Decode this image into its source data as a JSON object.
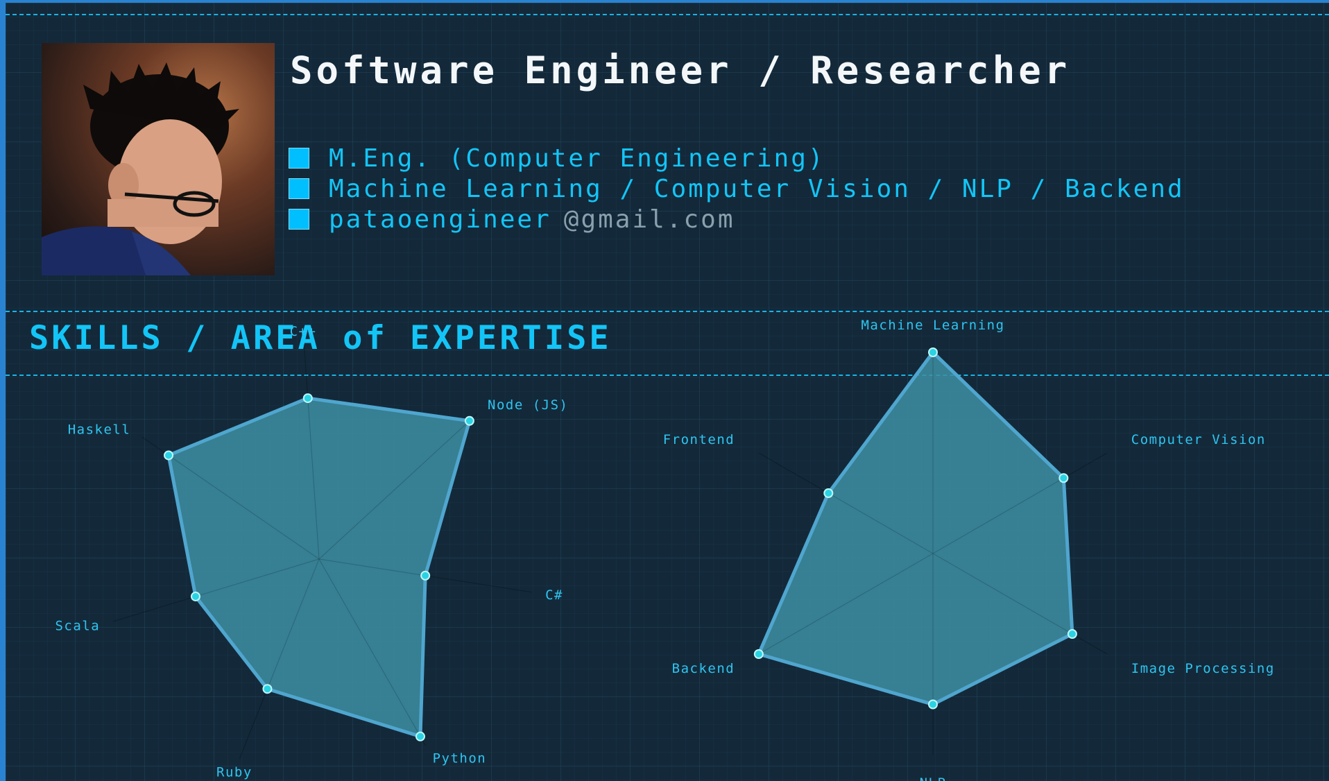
{
  "profile": {
    "title": "Software Engineer / Researcher",
    "items": [
      {
        "text": "M.Eng. (Computer Engineering)"
      },
      {
        "text": "Machine Learning / Computer Vision / NLP / Backend"
      },
      {
        "text": "pataoengineer",
        "suffix": "@gmail.com"
      }
    ]
  },
  "skills": {
    "heading": "SKILLS / AREA of EXPERTISE"
  },
  "colors": {
    "accent": "#13c5f7",
    "background": "#13293a",
    "radar_fill": "#3e8ea2",
    "radar_stroke": "#4fa6cf",
    "radar_point": "#2ad3e3"
  },
  "chart_data": [
    {
      "type": "radar",
      "axes": [
        "C++",
        "Node (JS)",
        "C#",
        "Python",
        "Ruby",
        "Scala",
        "Haskell"
      ],
      "values": [
        0.75,
        0.95,
        0.5,
        0.95,
        0.65,
        0.6,
        0.85
      ],
      "max": 1
    },
    {
      "type": "radar",
      "axes": [
        "Machine Learning",
        "Computer Vision",
        "Image Processing",
        "NLP",
        "Backend",
        "Frontend"
      ],
      "values": [
        1.0,
        0.75,
        0.8,
        0.75,
        1.0,
        0.6
      ],
      "max": 1
    }
  ]
}
